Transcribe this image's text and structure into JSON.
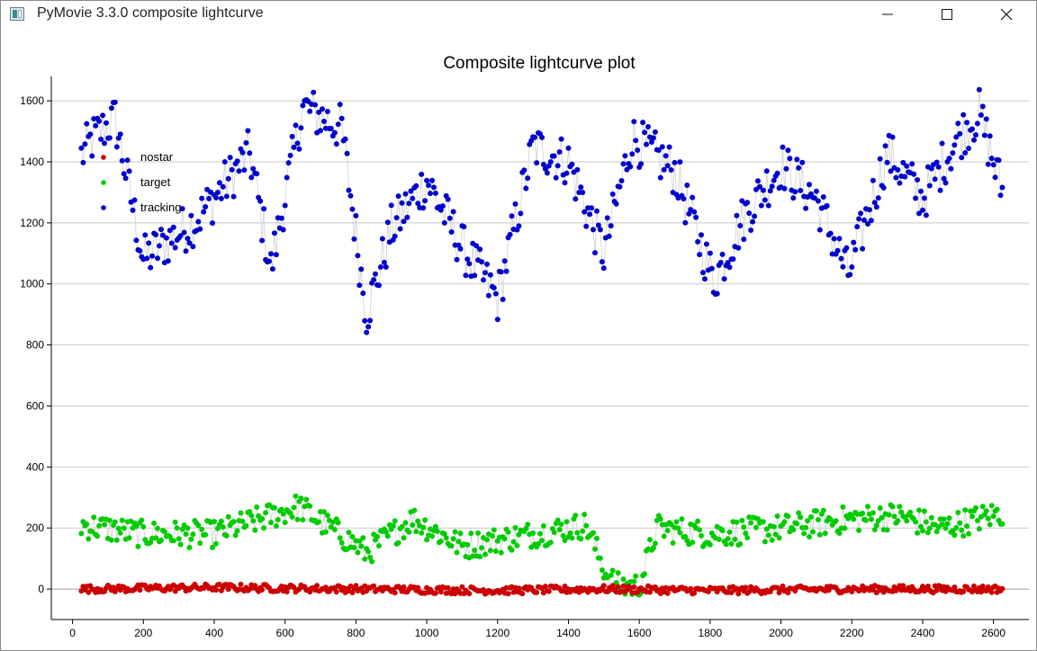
{
  "window": {
    "title": "PyMovie 3.3.0 composite lightcurve",
    "icon": "pymovie-app-icon",
    "controls": [
      "minimize-icon",
      "maximize-icon",
      "close-icon"
    ]
  },
  "plot": {
    "title": "Composite lightcurve plot",
    "grid_color": "#c8c8c8",
    "y_ticks": [
      "0",
      "200",
      "400",
      "600",
      "800",
      "1000",
      "1200",
      "1400",
      "1600"
    ],
    "x_ticks": [
      "0",
      "200",
      "400",
      "600",
      "800",
      "1000",
      "1200",
      "1400",
      "1600",
      "1800",
      "2000",
      "2200",
      "2400",
      "2600"
    ]
  },
  "chart_data": {
    "type": "scatter",
    "title": "Composite lightcurve plot",
    "xlabel": "",
    "ylabel": "",
    "xlim": [
      -60,
      2700
    ],
    "ylim": [
      -100,
      1680
    ],
    "grid": "horizontal",
    "legend_position": "top-left",
    "x_range_of_points": [
      25,
      2625
    ],
    "series": [
      {
        "name": "nostar",
        "color": "#cc0000",
        "x": [
          25,
          400,
          800,
          1200,
          1500,
          1800,
          2200,
          2625
        ],
        "y": [
          0,
          5,
          0,
          -5,
          0,
          -5,
          0,
          0
        ]
      },
      {
        "name": "target",
        "color": "#00cc00",
        "x": [
          25,
          200,
          400,
          640,
          830,
          960,
          1100,
          1300,
          1450,
          1510,
          1540,
          1600,
          1650,
          1800,
          2000,
          2200,
          2330,
          2450,
          2625
        ],
        "y": [
          210,
          180,
          180,
          270,
          120,
          230,
          140,
          180,
          210,
          40,
          10,
          10,
          200,
          180,
          200,
          230,
          240,
          200,
          250
        ]
      },
      {
        "name": "tracking",
        "color": "#0000cc",
        "x": [
          25,
          60,
          120,
          200,
          350,
          500,
          560,
          650,
          760,
          830,
          900,
          1000,
          1100,
          1200,
          1300,
          1400,
          1500,
          1580,
          1700,
          1810,
          1900,
          2000,
          2100,
          2190,
          2300,
          2400,
          2500,
          2560,
          2625
        ],
        "y": [
          1420,
          1480,
          1540,
          1080,
          1210,
          1430,
          1050,
          1580,
          1510,
          900,
          1180,
          1340,
          1120,
          950,
          1450,
          1400,
          1100,
          1480,
          1370,
          1010,
          1230,
          1390,
          1280,
          1030,
          1430,
          1280,
          1480,
          1560,
          1300
        ]
      }
    ]
  }
}
